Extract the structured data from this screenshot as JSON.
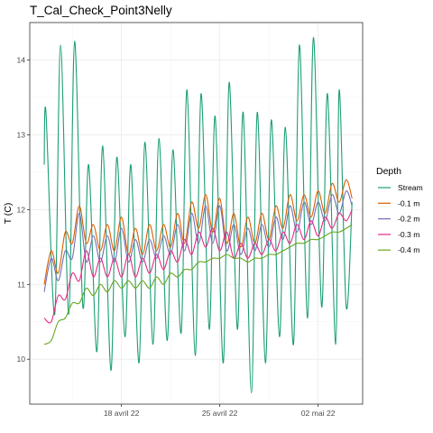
{
  "chart_data": {
    "type": "line",
    "title": "T_Cal_Check_Point3Nelly",
    "xlabel": "",
    "ylabel": "T (C)",
    "x_ticks": [
      "18 avril 22",
      "25 avril 22",
      "02 mai 22"
    ],
    "y_ticks": [
      10,
      11,
      12,
      13,
      14
    ],
    "ylim": [
      9.4,
      14.5
    ],
    "x_range": [
      "2022-04-12 12:00",
      "2022-05-03 12:00"
    ],
    "grid": true,
    "legend": {
      "title": "Depth",
      "placement": "right"
    },
    "series": [
      {
        "name": "Stream",
        "color": "#1b9e77",
        "points": [
          [
            "2022-04-12 12:00",
            12.6
          ],
          [
            "2022-04-12 15:00",
            13.3
          ],
          [
            "2022-04-13 06:00",
            10.6
          ],
          [
            "2022-04-13 16:00",
            14.2
          ],
          [
            "2022-04-14 06:00",
            10.6
          ],
          [
            "2022-04-14 16:00",
            14.25
          ],
          [
            "2022-04-15 06:00",
            10.7
          ],
          [
            "2022-04-15 16:00",
            12.6
          ],
          [
            "2022-04-16 06:00",
            10.1
          ],
          [
            "2022-04-16 16:00",
            12.85
          ],
          [
            "2022-04-17 06:00",
            9.85
          ],
          [
            "2022-04-17 16:00",
            12.7
          ],
          [
            "2022-04-18 06:00",
            10.3
          ],
          [
            "2022-04-18 16:00",
            12.6
          ],
          [
            "2022-04-19 06:00",
            9.95
          ],
          [
            "2022-04-19 16:00",
            12.9
          ],
          [
            "2022-04-20 06:00",
            10.2
          ],
          [
            "2022-04-20 16:00",
            12.95
          ],
          [
            "2022-04-21 06:00",
            10.25
          ],
          [
            "2022-04-21 16:00",
            12.8
          ],
          [
            "2022-04-22 06:00",
            10.35
          ],
          [
            "2022-04-22 16:00",
            13.6
          ],
          [
            "2022-04-23 06:00",
            10.05
          ],
          [
            "2022-04-23 16:00",
            13.55
          ],
          [
            "2022-04-24 06:00",
            10.4
          ],
          [
            "2022-04-24 16:00",
            13.25
          ],
          [
            "2022-04-25 06:00",
            9.95
          ],
          [
            "2022-04-25 16:00",
            13.7
          ],
          [
            "2022-04-26 06:00",
            10.4
          ],
          [
            "2022-04-26 16:00",
            13.3
          ],
          [
            "2022-04-27 06:00",
            9.55
          ],
          [
            "2022-04-27 16:00",
            13.3
          ],
          [
            "2022-04-28 06:00",
            9.95
          ],
          [
            "2022-04-28 16:00",
            13.2
          ],
          [
            "2022-04-29 06:00",
            10.3
          ],
          [
            "2022-04-29 16:00",
            13.1
          ],
          [
            "2022-04-30 06:00",
            10.2
          ],
          [
            "2022-04-30 16:00",
            14.2
          ],
          [
            "2022-05-01 06:00",
            10.55
          ],
          [
            "2022-05-01 16:00",
            14.3
          ],
          [
            "2022-05-02 06:00",
            10.7
          ],
          [
            "2022-05-02 16:00",
            13.55
          ],
          [
            "2022-05-03 06:00",
            10.2
          ],
          [
            "2022-05-03 12:00",
            13.6
          ],
          [
            "2022-05-04 00:00",
            10.7
          ],
          [
            "2022-05-04 10:00",
            12.1
          ]
        ]
      },
      {
        "name": "-0.1 m",
        "color": "#d95f02",
        "points": [
          [
            "2022-04-12 12:00",
            11.0
          ],
          [
            "2022-04-13 00:00",
            11.45
          ],
          [
            "2022-04-13 12:00",
            11.15
          ],
          [
            "2022-04-14 00:00",
            11.7
          ],
          [
            "2022-04-14 12:00",
            11.55
          ],
          [
            "2022-04-15 00:00",
            12.05
          ],
          [
            "2022-04-15 12:00",
            11.55
          ],
          [
            "2022-04-16 00:00",
            11.8
          ],
          [
            "2022-04-16 12:00",
            11.45
          ],
          [
            "2022-04-17 00:00",
            11.8
          ],
          [
            "2022-04-17 12:00",
            11.45
          ],
          [
            "2022-04-18 00:00",
            11.9
          ],
          [
            "2022-04-18 12:00",
            11.4
          ],
          [
            "2022-04-19 00:00",
            11.75
          ],
          [
            "2022-04-19 12:00",
            11.4
          ],
          [
            "2022-04-20 00:00",
            11.8
          ],
          [
            "2022-04-20 12:00",
            11.45
          ],
          [
            "2022-04-21 00:00",
            11.8
          ],
          [
            "2022-04-21 12:00",
            11.5
          ],
          [
            "2022-04-22 00:00",
            11.95
          ],
          [
            "2022-04-22 12:00",
            11.55
          ],
          [
            "2022-04-23 00:00",
            12.1
          ],
          [
            "2022-04-23 12:00",
            11.75
          ],
          [
            "2022-04-24 00:00",
            12.2
          ],
          [
            "2022-04-24 12:00",
            11.7
          ],
          [
            "2022-04-25 00:00",
            12.15
          ],
          [
            "2022-04-25 12:00",
            11.55
          ],
          [
            "2022-04-26 00:00",
            11.95
          ],
          [
            "2022-04-26 12:00",
            11.5
          ],
          [
            "2022-04-27 00:00",
            11.9
          ],
          [
            "2022-04-27 12:00",
            11.55
          ],
          [
            "2022-04-28 00:00",
            11.95
          ],
          [
            "2022-04-28 12:00",
            11.6
          ],
          [
            "2022-04-29 00:00",
            12.05
          ],
          [
            "2022-04-29 12:00",
            11.75
          ],
          [
            "2022-04-30 00:00",
            12.2
          ],
          [
            "2022-04-30 12:00",
            11.85
          ],
          [
            "2022-05-01 00:00",
            12.2
          ],
          [
            "2022-05-01 12:00",
            11.9
          ],
          [
            "2022-05-02 00:00",
            12.25
          ],
          [
            "2022-05-02 12:00",
            11.95
          ],
          [
            "2022-05-03 00:00",
            12.35
          ],
          [
            "2022-05-03 12:00",
            12.1
          ],
          [
            "2022-05-04 00:00",
            12.4
          ],
          [
            "2022-05-04 10:00",
            12.15
          ]
        ]
      },
      {
        "name": "-0.2 m",
        "color": "#7570b3",
        "points": [
          [
            "2022-04-12 12:00",
            10.9
          ],
          [
            "2022-04-13 00:00",
            11.35
          ],
          [
            "2022-04-13 12:00",
            11.05
          ],
          [
            "2022-04-14 00:00",
            11.45
          ],
          [
            "2022-04-14 12:00",
            11.35
          ],
          [
            "2022-04-15 00:00",
            11.95
          ],
          [
            "2022-04-15 12:00",
            11.3
          ],
          [
            "2022-04-16 00:00",
            11.65
          ],
          [
            "2022-04-16 12:00",
            11.3
          ],
          [
            "2022-04-17 00:00",
            11.65
          ],
          [
            "2022-04-17 12:00",
            11.3
          ],
          [
            "2022-04-18 00:00",
            11.75
          ],
          [
            "2022-04-18 12:00",
            11.3
          ],
          [
            "2022-04-19 00:00",
            11.6
          ],
          [
            "2022-04-19 12:00",
            11.3
          ],
          [
            "2022-04-20 00:00",
            11.6
          ],
          [
            "2022-04-20 12:00",
            11.35
          ],
          [
            "2022-04-21 00:00",
            11.65
          ],
          [
            "2022-04-21 12:00",
            11.4
          ],
          [
            "2022-04-22 00:00",
            11.8
          ],
          [
            "2022-04-22 12:00",
            11.45
          ],
          [
            "2022-04-23 00:00",
            11.95
          ],
          [
            "2022-04-23 12:00",
            11.55
          ],
          [
            "2022-04-24 00:00",
            12.05
          ],
          [
            "2022-04-24 12:00",
            11.55
          ],
          [
            "2022-04-25 00:00",
            12.05
          ],
          [
            "2022-04-25 12:00",
            11.45
          ],
          [
            "2022-04-26 00:00",
            11.8
          ],
          [
            "2022-04-26 12:00",
            11.4
          ],
          [
            "2022-04-27 00:00",
            11.75
          ],
          [
            "2022-04-27 12:00",
            11.45
          ],
          [
            "2022-04-28 00:00",
            11.8
          ],
          [
            "2022-04-28 12:00",
            11.5
          ],
          [
            "2022-04-29 00:00",
            11.9
          ],
          [
            "2022-04-29 12:00",
            11.6
          ],
          [
            "2022-04-30 00:00",
            12.05
          ],
          [
            "2022-04-30 12:00",
            11.7
          ],
          [
            "2022-05-01 00:00",
            12.1
          ],
          [
            "2022-05-01 12:00",
            11.8
          ],
          [
            "2022-05-02 00:00",
            12.1
          ],
          [
            "2022-05-02 12:00",
            11.85
          ],
          [
            "2022-05-03 00:00",
            12.2
          ],
          [
            "2022-05-03 12:00",
            11.95
          ],
          [
            "2022-05-04 00:00",
            12.25
          ],
          [
            "2022-05-04 10:00",
            12.05
          ]
        ]
      },
      {
        "name": "-0.3 m",
        "color": "#e7298a",
        "points": [
          [
            "2022-04-12 12:00",
            10.55
          ],
          [
            "2022-04-13 00:00",
            10.5
          ],
          [
            "2022-04-13 12:00",
            10.85
          ],
          [
            "2022-04-14 00:00",
            10.8
          ],
          [
            "2022-04-14 12:00",
            11.15
          ],
          [
            "2022-04-15 00:00",
            11.05
          ],
          [
            "2022-04-15 12:00",
            11.45
          ],
          [
            "2022-04-16 00:00",
            11.1
          ],
          [
            "2022-04-16 12:00",
            11.35
          ],
          [
            "2022-04-17 00:00",
            11.1
          ],
          [
            "2022-04-17 12:00",
            11.35
          ],
          [
            "2022-04-18 00:00",
            11.1
          ],
          [
            "2022-04-18 12:00",
            11.4
          ],
          [
            "2022-04-19 00:00",
            11.1
          ],
          [
            "2022-04-19 12:00",
            11.35
          ],
          [
            "2022-04-20 00:00",
            11.15
          ],
          [
            "2022-04-20 12:00",
            11.4
          ],
          [
            "2022-04-21 00:00",
            11.2
          ],
          [
            "2022-04-21 12:00",
            11.45
          ],
          [
            "2022-04-22 00:00",
            11.3
          ],
          [
            "2022-04-22 12:00",
            11.6
          ],
          [
            "2022-04-23 00:00",
            11.4
          ],
          [
            "2022-04-23 12:00",
            11.7
          ],
          [
            "2022-04-24 00:00",
            11.5
          ],
          [
            "2022-04-24 12:00",
            11.75
          ],
          [
            "2022-04-25 00:00",
            11.45
          ],
          [
            "2022-04-25 12:00",
            11.7
          ],
          [
            "2022-04-26 00:00",
            11.35
          ],
          [
            "2022-04-26 12:00",
            11.55
          ],
          [
            "2022-04-27 00:00",
            11.35
          ],
          [
            "2022-04-27 12:00",
            11.55
          ],
          [
            "2022-04-28 00:00",
            11.4
          ],
          [
            "2022-04-28 12:00",
            11.6
          ],
          [
            "2022-04-29 00:00",
            11.45
          ],
          [
            "2022-04-29 12:00",
            11.7
          ],
          [
            "2022-04-30 00:00",
            11.55
          ],
          [
            "2022-04-30 12:00",
            11.8
          ],
          [
            "2022-05-01 00:00",
            11.6
          ],
          [
            "2022-05-01 12:00",
            11.85
          ],
          [
            "2022-05-02 00:00",
            11.65
          ],
          [
            "2022-05-02 12:00",
            11.9
          ],
          [
            "2022-05-03 00:00",
            11.75
          ],
          [
            "2022-05-03 12:00",
            11.95
          ],
          [
            "2022-05-04 00:00",
            11.85
          ],
          [
            "2022-05-04 10:00",
            12.0
          ]
        ]
      },
      {
        "name": "-0.4 m",
        "color": "#66a61e",
        "points": [
          [
            "2022-04-12 12:00",
            10.2
          ],
          [
            "2022-04-13 00:00",
            10.25
          ],
          [
            "2022-04-13 12:00",
            10.5
          ],
          [
            "2022-04-14 00:00",
            10.55
          ],
          [
            "2022-04-14 12:00",
            10.75
          ],
          [
            "2022-04-15 00:00",
            10.75
          ],
          [
            "2022-04-15 12:00",
            10.95
          ],
          [
            "2022-04-16 00:00",
            10.85
          ],
          [
            "2022-04-16 12:00",
            11.0
          ],
          [
            "2022-04-17 00:00",
            10.9
          ],
          [
            "2022-04-17 12:00",
            11.05
          ],
          [
            "2022-04-18 00:00",
            10.95
          ],
          [
            "2022-04-18 12:00",
            11.05
          ],
          [
            "2022-04-19 00:00",
            10.95
          ],
          [
            "2022-04-19 12:00",
            11.05
          ],
          [
            "2022-04-20 00:00",
            10.95
          ],
          [
            "2022-04-20 12:00",
            11.1
          ],
          [
            "2022-04-21 00:00",
            11.0
          ],
          [
            "2022-04-21 12:00",
            11.15
          ],
          [
            "2022-04-22 00:00",
            11.1
          ],
          [
            "2022-04-22 12:00",
            11.2
          ],
          [
            "2022-04-23 00:00",
            11.2
          ],
          [
            "2022-04-23 12:00",
            11.3
          ],
          [
            "2022-04-24 00:00",
            11.3
          ],
          [
            "2022-04-24 12:00",
            11.35
          ],
          [
            "2022-04-25 00:00",
            11.35
          ],
          [
            "2022-04-25 12:00",
            11.4
          ],
          [
            "2022-04-26 00:00",
            11.35
          ],
          [
            "2022-04-26 12:00",
            11.35
          ],
          [
            "2022-04-27 00:00",
            11.3
          ],
          [
            "2022-04-27 12:00",
            11.35
          ],
          [
            "2022-04-28 00:00",
            11.35
          ],
          [
            "2022-04-28 12:00",
            11.4
          ],
          [
            "2022-04-29 00:00",
            11.4
          ],
          [
            "2022-04-29 12:00",
            11.45
          ],
          [
            "2022-04-30 00:00",
            11.5
          ],
          [
            "2022-04-30 12:00",
            11.55
          ],
          [
            "2022-05-01 00:00",
            11.55
          ],
          [
            "2022-05-01 12:00",
            11.6
          ],
          [
            "2022-05-02 00:00",
            11.6
          ],
          [
            "2022-05-02 12:00",
            11.65
          ],
          [
            "2022-05-03 00:00",
            11.7
          ],
          [
            "2022-05-03 12:00",
            11.7
          ],
          [
            "2022-05-04 00:00",
            11.75
          ],
          [
            "2022-05-04 10:00",
            11.8
          ]
        ]
      }
    ]
  }
}
